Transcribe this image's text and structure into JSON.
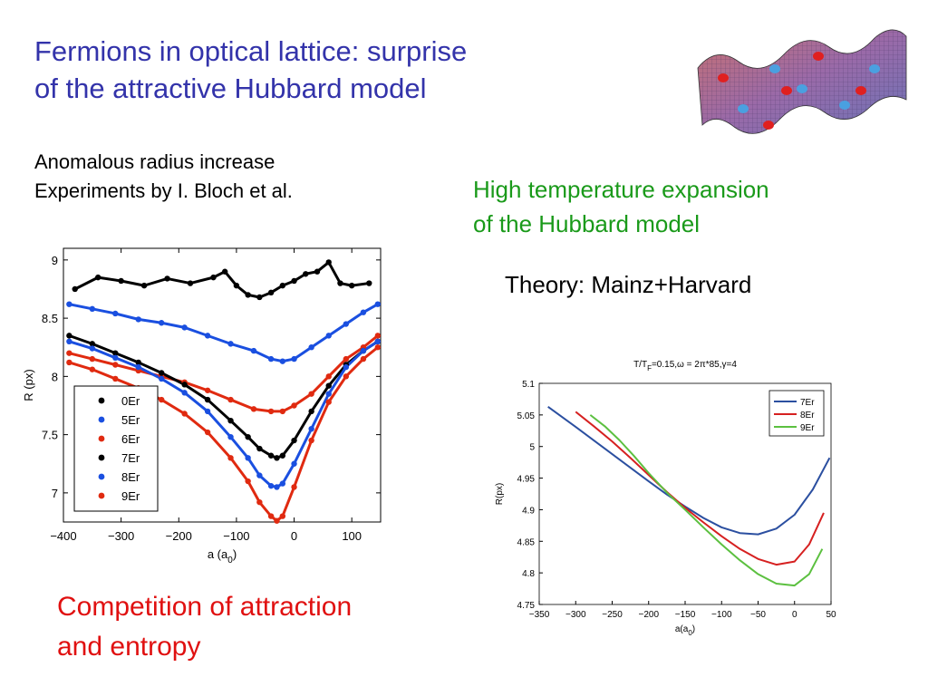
{
  "slide": {
    "title_line1": "Fermions in optical lattice: surprise",
    "title_line2": "of the attractive Hubbard model",
    "subtitle_line1": "Anomalous radius increase",
    "subtitle_line2": "Experiments by I. Bloch et al.",
    "green_line1": "High temperature expansion",
    "green_line2": "of the Hubbard model",
    "theory_label": "Theory: Mainz+Harvard",
    "conclusion_line1": "Competition of attraction",
    "conclusion_line2": "and entropy"
  },
  "colors": {
    "title": "#3333aa",
    "green": "#1a9a1a",
    "red": "#e01010"
  },
  "chart_data": [
    {
      "type": "scatter",
      "xlabel": "a (a0)",
      "ylabel": "R (px)",
      "xlim": [
        -400,
        150
      ],
      "ylim": [
        6.75,
        9.1
      ],
      "xticks": [
        -400,
        -300,
        -200,
        -100,
        0,
        100
      ],
      "yticks": [
        7,
        7.5,
        8,
        8.5,
        9
      ],
      "legend_position": "lower-left",
      "series": [
        {
          "name": "0Er",
          "color": "#000000",
          "x": [
            -380,
            -340,
            -300,
            -260,
            -220,
            -180,
            -140,
            -120,
            -100,
            -80,
            -60,
            -40,
            -20,
            0,
            20,
            40,
            60,
            80,
            100,
            130
          ],
          "y": [
            8.75,
            8.85,
            8.82,
            8.78,
            8.84,
            8.8,
            8.85,
            8.9,
            8.78,
            8.7,
            8.68,
            8.72,
            8.78,
            8.82,
            8.88,
            8.9,
            8.98,
            8.8,
            8.78,
            8.8
          ]
        },
        {
          "name": "5Er",
          "color": "#1a4fe0",
          "x": [
            -390,
            -350,
            -310,
            -270,
            -230,
            -190,
            -150,
            -110,
            -70,
            -40,
            -20,
            0,
            30,
            60,
            90,
            120,
            145
          ],
          "y": [
            8.62,
            8.58,
            8.54,
            8.49,
            8.46,
            8.42,
            8.35,
            8.28,
            8.22,
            8.15,
            8.13,
            8.15,
            8.25,
            8.35,
            8.45,
            8.55,
            8.62
          ]
        },
        {
          "name": "6Er",
          "color": "#e02a10",
          "x": [
            -390,
            -350,
            -310,
            -270,
            -230,
            -190,
            -150,
            -110,
            -70,
            -40,
            -20,
            0,
            30,
            60,
            90,
            120,
            145
          ],
          "y": [
            8.2,
            8.15,
            8.1,
            8.05,
            8.0,
            7.95,
            7.88,
            7.8,
            7.72,
            7.7,
            7.7,
            7.75,
            7.85,
            8.0,
            8.15,
            8.25,
            8.35
          ]
        },
        {
          "name": "7Er",
          "color": "#000000",
          "x": [
            -390,
            -350,
            -310,
            -270,
            -230,
            -190,
            -150,
            -110,
            -80,
            -60,
            -40,
            -30,
            -20,
            0,
            30,
            60,
            90,
            120,
            145
          ],
          "y": [
            8.35,
            8.28,
            8.2,
            8.12,
            8.03,
            7.93,
            7.8,
            7.62,
            7.48,
            7.38,
            7.32,
            7.3,
            7.32,
            7.45,
            7.7,
            7.92,
            8.1,
            8.22,
            8.3
          ]
        },
        {
          "name": "8Er",
          "color": "#1a4fe0",
          "x": [
            -390,
            -350,
            -310,
            -270,
            -230,
            -190,
            -150,
            -110,
            -80,
            -60,
            -40,
            -30,
            -20,
            0,
            30,
            60,
            90,
            120,
            145
          ],
          "y": [
            8.3,
            8.24,
            8.16,
            8.08,
            7.98,
            7.86,
            7.7,
            7.48,
            7.3,
            7.15,
            7.06,
            7.05,
            7.08,
            7.25,
            7.55,
            7.85,
            8.08,
            8.22,
            8.3
          ]
        },
        {
          "name": "9Er",
          "color": "#e02a10",
          "x": [
            -390,
            -350,
            -310,
            -270,
            -230,
            -190,
            -150,
            -110,
            -80,
            -60,
            -40,
            -30,
            -20,
            0,
            30,
            60,
            90,
            120,
            145
          ],
          "y": [
            8.12,
            8.06,
            7.98,
            7.9,
            7.8,
            7.68,
            7.52,
            7.3,
            7.1,
            6.92,
            6.8,
            6.76,
            6.8,
            7.05,
            7.45,
            7.78,
            8.0,
            8.15,
            8.25
          ]
        }
      ]
    },
    {
      "type": "line",
      "title": "T/TF=0.15,ω = 2π*85,γ=4",
      "xlabel": "a(a0)",
      "ylabel": "R(px)",
      "xlim": [
        -350,
        50
      ],
      "ylim": [
        4.75,
        5.1
      ],
      "xticks": [
        -350,
        -300,
        -250,
        -200,
        -150,
        -100,
        -50,
        0,
        50
      ],
      "yticks": [
        4.75,
        4.8,
        4.85,
        4.9,
        4.95,
        5,
        5.05,
        5.1
      ],
      "legend_position": "top-right",
      "series": [
        {
          "name": "7Er",
          "color": "#2b4fa0",
          "x": [
            -338,
            -300,
            -250,
            -200,
            -175,
            -150,
            -125,
            -100,
            -75,
            -50,
            -25,
            0,
            25,
            48
          ],
          "y": [
            5.063,
            5.031,
            4.988,
            4.945,
            4.924,
            4.905,
            4.887,
            4.872,
            4.863,
            4.861,
            4.87,
            4.892,
            4.932,
            4.982
          ]
        },
        {
          "name": "8Er",
          "color": "#d62020",
          "x": [
            -300,
            -275,
            -250,
            -225,
            -200,
            -175,
            -150,
            -125,
            -100,
            -75,
            -50,
            -25,
            0,
            20,
            40
          ],
          "y": [
            5.055,
            5.032,
            5.008,
            4.982,
            4.955,
            4.928,
            4.903,
            4.88,
            4.858,
            4.838,
            4.822,
            4.813,
            4.818,
            4.845,
            4.895
          ]
        },
        {
          "name": "9Er",
          "color": "#5cc040",
          "x": [
            -280,
            -260,
            -240,
            -220,
            -200,
            -175,
            -150,
            -125,
            -100,
            -75,
            -50,
            -25,
            0,
            20,
            38
          ],
          "y": [
            5.05,
            5.032,
            5.01,
            4.985,
            4.958,
            4.927,
            4.9,
            4.872,
            4.845,
            4.82,
            4.798,
            4.783,
            4.78,
            4.798,
            4.838
          ]
        }
      ]
    }
  ]
}
